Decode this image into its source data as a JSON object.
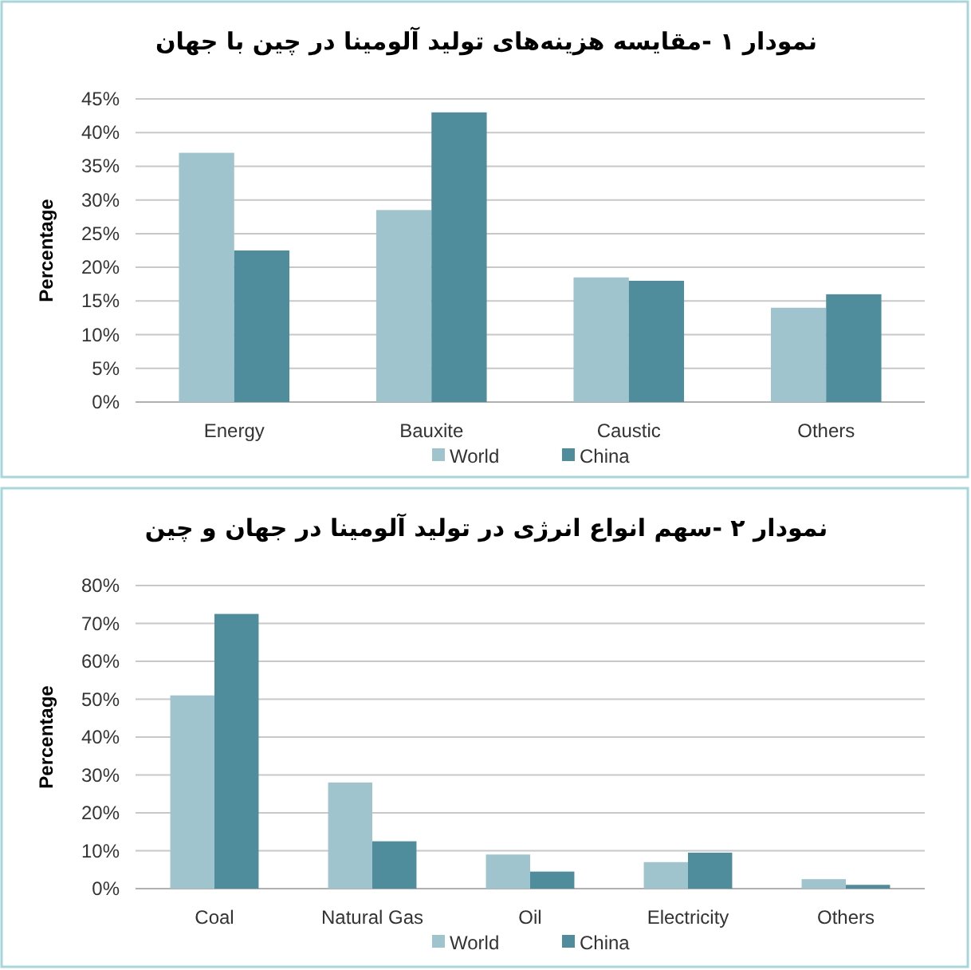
{
  "chart_data": [
    {
      "type": "bar",
      "title": "نمودار ۱ -مقایسه هزینه‌های تولید آلومینا در چین با جهان",
      "ylabel": "Percentage",
      "categories": [
        "Energy",
        "Bauxite",
        "Caustic",
        "Others"
      ],
      "series": [
        {
          "name": "World",
          "color": "#9fc4cd",
          "values": [
            37,
            28.5,
            18.5,
            14
          ]
        },
        {
          "name": "China",
          "color": "#4f8d9c",
          "values": [
            22.5,
            43,
            18,
            16
          ]
        }
      ],
      "ylim": [
        0,
        45
      ],
      "yticks": [
        {
          "value": 0,
          "label": "0%"
        },
        {
          "value": 5,
          "label": "5%"
        },
        {
          "value": 10,
          "label": "10%"
        },
        {
          "value": 15,
          "label": "15%"
        },
        {
          "value": 20,
          "label": "20%"
        },
        {
          "value": 25,
          "label": "25%"
        },
        {
          "value": 30,
          "label": "30%"
        },
        {
          "value": 35,
          "label": "35%"
        },
        {
          "value": 40,
          "label": "40%"
        },
        {
          "value": 45,
          "label": "45%"
        }
      ],
      "grid": "y",
      "legend": "bottom"
    },
    {
      "type": "bar",
      "title": "نمودار ۲ -سهم انواع انرژی در تولید آلومینا در جهان و چین",
      "ylabel": "Percentage",
      "categories": [
        "Coal",
        "Natural Gas",
        "Oil",
        "Electricity",
        "Others"
      ],
      "series": [
        {
          "name": "World",
          "color": "#9fc4cd",
          "values": [
            51,
            28,
            9,
            7,
            2.5
          ]
        },
        {
          "name": "China",
          "color": "#4f8d9c",
          "values": [
            72.5,
            12.5,
            4.5,
            9.5,
            1
          ]
        }
      ],
      "ylim": [
        0,
        80
      ],
      "yticks": [
        {
          "value": 0,
          "label": "0%"
        },
        {
          "value": 10,
          "label": "10%"
        },
        {
          "value": 20,
          "label": "20%"
        },
        {
          "value": 30,
          "label": "30%"
        },
        {
          "value": 40,
          "label": "40%"
        },
        {
          "value": 50,
          "label": "50%"
        },
        {
          "value": 60,
          "label": "60%"
        },
        {
          "value": 70,
          "label": "70%"
        },
        {
          "value": 80,
          "label": "80%"
        }
      ],
      "grid": "y",
      "legend": "bottom"
    }
  ]
}
